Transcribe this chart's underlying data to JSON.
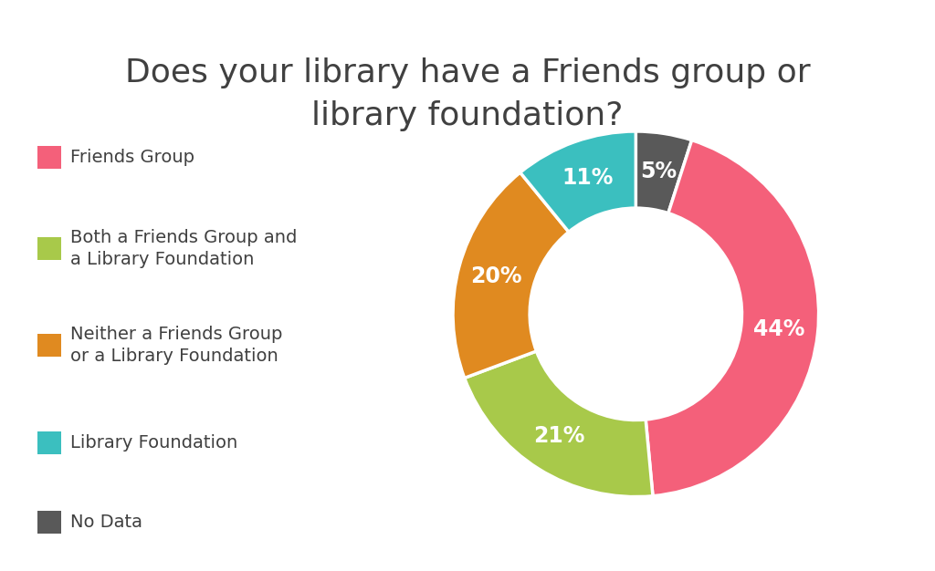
{
  "title": "Does your library have a Friends group or\nlibrary foundation?",
  "title_fontsize": 26,
  "title_color": "#404040",
  "slices": [
    44,
    21,
    20,
    11,
    5
  ],
  "labels": [
    "Friends Group",
    "Both a Friends Group and\na Library Foundation",
    "Neither a Friends Group\nor a Library Foundation",
    "Library Foundation",
    "No Data"
  ],
  "colors": [
    "#F4607A",
    "#A8C94A",
    "#E08A20",
    "#3BBFBF",
    "#595959"
  ],
  "pct_labels": [
    "44%",
    "21%",
    "20%",
    "11%",
    "5%"
  ],
  "background_color": "#ffffff",
  "legend_fontsize": 14,
  "pct_fontsize": 17,
  "donut_width": 0.42
}
